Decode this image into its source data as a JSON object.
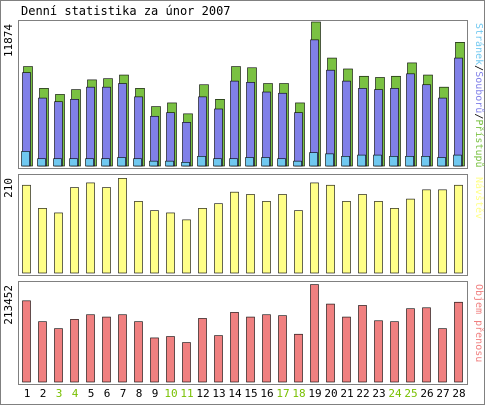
{
  "title": "Denní statistika za únor 2007",
  "colors": {
    "hits": "#7ac142",
    "files": "#8080e8",
    "pages": "#70c8f0",
    "visits": "#ffff88",
    "kbytes": "#f08080",
    "weekend_label": "#78c000",
    "weekday_label": "#000000",
    "frame": "#808080",
    "outline": "#000000"
  },
  "chart_data": [
    {
      "type": "bar",
      "panel": "top",
      "ymax_label": "11874",
      "legend_parts": [
        "Stránek",
        "Souborů",
        "Přístupů"
      ],
      "legend_separator": "/",
      "categories": [
        "1",
        "2",
        "3",
        "4",
        "5",
        "6",
        "7",
        "8",
        "9",
        "10",
        "11",
        "12",
        "13",
        "14",
        "15",
        "16",
        "17",
        "18",
        "19",
        "20",
        "21",
        "22",
        "23",
        "24",
        "25",
        "26",
        "27",
        "28"
      ],
      "ylim": [
        0,
        11874
      ],
      "series": [
        {
          "name": "Přístupů",
          "values": [
            8200,
            6400,
            5900,
            6300,
            7100,
            7200,
            7500,
            6400,
            4900,
            5200,
            4300,
            6700,
            5500,
            8200,
            8100,
            6800,
            6800,
            5200,
            11874,
            8900,
            8000,
            7400,
            7300,
            7400,
            8500,
            7500,
            6500,
            10200
          ]
        },
        {
          "name": "Souborů",
          "values": [
            7700,
            5600,
            5300,
            5500,
            6500,
            6500,
            6800,
            5700,
            4100,
            4400,
            3600,
            5700,
            4700,
            7000,
            6900,
            6100,
            6000,
            4400,
            10400,
            7900,
            7000,
            6400,
            6300,
            6400,
            7600,
            6700,
            5600,
            8900
          ]
        },
        {
          "name": "Stránek",
          "values": [
            1200,
            600,
            600,
            600,
            600,
            600,
            700,
            600,
            400,
            400,
            300,
            800,
            600,
            600,
            700,
            700,
            600,
            400,
            1100,
            1000,
            800,
            900,
            900,
            800,
            800,
            800,
            700,
            900
          ]
        }
      ]
    },
    {
      "type": "bar",
      "panel": "middle",
      "ymax_label": "210",
      "legend_parts": [
        "Návštěv"
      ],
      "categories": [
        "1",
        "2",
        "3",
        "4",
        "5",
        "6",
        "7",
        "8",
        "9",
        "10",
        "11",
        "12",
        "13",
        "14",
        "15",
        "16",
        "17",
        "18",
        "19",
        "20",
        "21",
        "22",
        "23",
        "24",
        "25",
        "26",
        "27",
        "28"
      ],
      "ylim": [
        0,
        210
      ],
      "series": [
        {
          "name": "Návštěv",
          "values": [
            190,
            140,
            130,
            185,
            195,
            185,
            205,
            155,
            135,
            130,
            115,
            140,
            150,
            175,
            170,
            155,
            170,
            135,
            195,
            190,
            155,
            170,
            155,
            140,
            160,
            180,
            180,
            190
          ]
        }
      ]
    },
    {
      "type": "bar",
      "panel": "bottom",
      "ymax_label": "213452",
      "legend_parts": [
        "Objem přenosu"
      ],
      "categories": [
        "1",
        "2",
        "3",
        "4",
        "5",
        "6",
        "7",
        "8",
        "9",
        "10",
        "11",
        "12",
        "13",
        "14",
        "15",
        "16",
        "17",
        "18",
        "19",
        "20",
        "21",
        "22",
        "23",
        "24",
        "25",
        "26",
        "27",
        "28"
      ],
      "ylim": [
        0,
        213452
      ],
      "series": [
        {
          "name": "Objem přenosu",
          "values": [
            175000,
            130000,
            115000,
            135000,
            145000,
            140000,
            145000,
            130000,
            95000,
            98000,
            85000,
            137000,
            100000,
            150000,
            140000,
            145000,
            143000,
            103000,
            210000,
            168000,
            140000,
            165000,
            132000,
            130000,
            158000,
            160000,
            115000,
            172000
          ]
        }
      ]
    }
  ],
  "weekend_days": [
    "3",
    "4",
    "10",
    "11",
    "17",
    "18",
    "24",
    "25"
  ]
}
